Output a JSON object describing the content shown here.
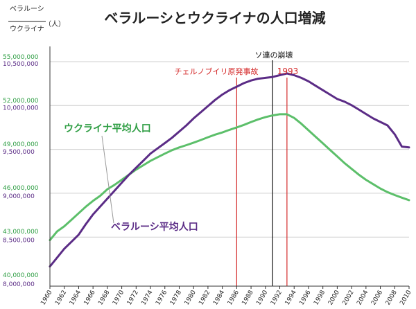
{
  "chart_data": {
    "type": "line",
    "title": "ベラルーシとウクライナの人口増減",
    "unit_label": {
      "top": "ベラルーシ",
      "bottom": "ウクライナ",
      "unit": "（人）"
    },
    "x": [
      1960,
      1961,
      1962,
      1963,
      1964,
      1965,
      1966,
      1967,
      1968,
      1969,
      1970,
      1971,
      1972,
      1973,
      1974,
      1975,
      1976,
      1977,
      1978,
      1979,
      1980,
      1981,
      1982,
      1983,
      1984,
      1985,
      1986,
      1987,
      1988,
      1989,
      1990,
      1991,
      1992,
      1993,
      1994,
      1995,
      1996,
      1997,
      1998,
      1999,
      2000,
      2001,
      2002,
      2003,
      2004,
      2005,
      2006,
      2007,
      2008,
      2009,
      2010
    ],
    "xticks": [
      "1960",
      "1962",
      "1964",
      "1966",
      "1968",
      "1970",
      "1972",
      "1974",
      "1976",
      "1978",
      "1980",
      "1982",
      "1984",
      "1986",
      "1988",
      "1990",
      "1992",
      "1994",
      "1996",
      "1998",
      "2000",
      "2002",
      "2004",
      "2006",
      "2008",
      "2010"
    ],
    "xlim": [
      1960,
      2010
    ],
    "yaxis_ukraine": {
      "ticks": [
        "40,000,000",
        "43,000,000",
        "46,000,000",
        "49,000,000",
        "52,000,000",
        "55,000,000"
      ],
      "range": [
        40000000,
        55000000
      ],
      "color": "#2f9e44"
    },
    "yaxis_belarus": {
      "ticks": [
        "8,000,000",
        "8,500,000",
        "9,000,000",
        "9,500,000",
        "10,000,000",
        "10,500,000"
      ],
      "range": [
        8000000,
        10500000
      ],
      "color": "#5b2c86"
    },
    "series": [
      {
        "name": "ウクライナ平均人口",
        "axis": "ukraine",
        "color": "#5cbf6a",
        "values": [
          42400000,
          43000000,
          43350000,
          43800000,
          44250000,
          44700000,
          45100000,
          45450000,
          45900000,
          46200000,
          46550000,
          46900000,
          47250000,
          47550000,
          47850000,
          48100000,
          48350000,
          48580000,
          48770000,
          48930000,
          49100000,
          49280000,
          49470000,
          49650000,
          49800000,
          49980000,
          50150000,
          50320000,
          50520000,
          50700000,
          50850000,
          50970000,
          51050000,
          51050000,
          50800000,
          50400000,
          49950000,
          49500000,
          49050000,
          48600000,
          48150000,
          47700000,
          47300000,
          46900000,
          46550000,
          46250000,
          45950000,
          45700000,
          45500000,
          45320000,
          45150000
        ]
      },
      {
        "name": "ベラルーシ平均人口",
        "axis": "belarus",
        "color": "#5b2c86",
        "values": [
          8200000,
          8300000,
          8400000,
          8480000,
          8560000,
          8680000,
          8790000,
          8880000,
          8970000,
          9060000,
          9150000,
          9240000,
          9320000,
          9400000,
          9480000,
          9540000,
          9600000,
          9660000,
          9730000,
          9800000,
          9880000,
          9950000,
          10020000,
          10090000,
          10150000,
          10200000,
          10240000,
          10280000,
          10310000,
          10330000,
          10340000,
          10350000,
          10370000,
          10390000,
          10370000,
          10340000,
          10300000,
          10250000,
          10200000,
          10150000,
          10100000,
          10070000,
          10030000,
          9980000,
          9930000,
          9880000,
          9840000,
          9800000,
          9700000,
          9560000,
          9550000
        ]
      }
    ],
    "annotations": [
      {
        "label": "ソ連の崩壊",
        "x": 1991,
        "color": "#111111"
      },
      {
        "label": "チェルノブイリ原発事故",
        "x": 1986,
        "color": "#d42a2a"
      },
      {
        "label": "1993",
        "x": 1993,
        "color": "#d42a2a"
      }
    ],
    "grid": true,
    "legend": "inline labels"
  }
}
